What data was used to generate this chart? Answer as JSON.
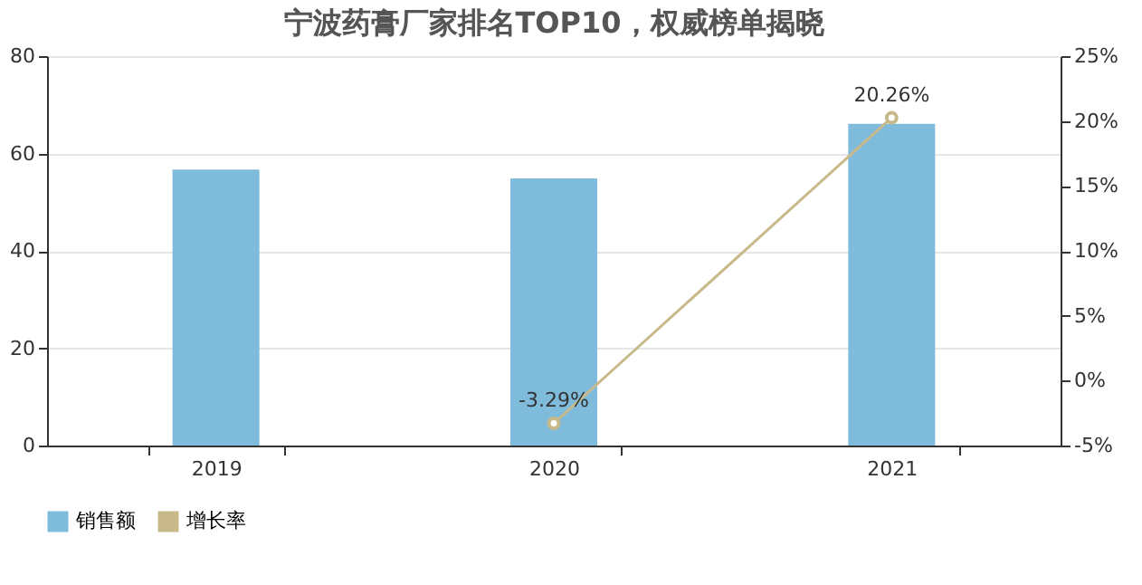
{
  "chart_data": {
    "type": "bar",
    "title": "宁波药膏厂家排名TOP10，权威榜单揭晓",
    "categories": [
      "2019",
      "2020",
      "2021"
    ],
    "series": [
      {
        "name": "销售额",
        "color": "#7fbbdb",
        "values": [
          56.7,
          54.9,
          66.1
        ]
      },
      {
        "name": "增长率",
        "type": "line",
        "axis": "y2",
        "color": "#c8b98a",
        "values": [
          null,
          -3.29,
          20.26
        ],
        "value_labels": [
          null,
          "-3.29%",
          "20.26%"
        ]
      }
    ],
    "ylim": [
      0,
      80
    ],
    "yticks": [
      0,
      20,
      40,
      60,
      80
    ],
    "y2lim": [
      -5,
      25
    ],
    "y2ticks": [
      {
        "value": -5,
        "label": "-5%"
      },
      {
        "value": 0,
        "label": "0%"
      },
      {
        "value": 5,
        "label": "5%"
      },
      {
        "value": 10,
        "label": "10%"
      },
      {
        "value": 15,
        "label": "15%"
      },
      {
        "value": 20,
        "label": "20%"
      },
      {
        "value": 25,
        "label": "25%"
      }
    ],
    "grid": "y",
    "legend": "bottom",
    "marker": "circle"
  }
}
